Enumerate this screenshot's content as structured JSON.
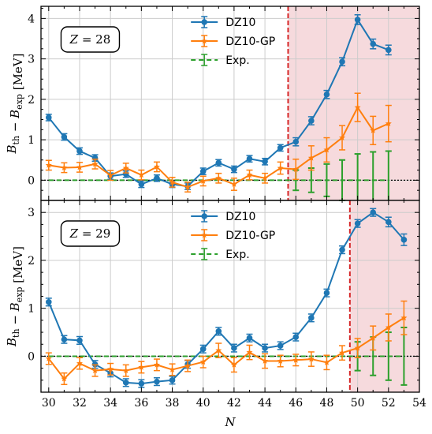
{
  "colors": {
    "dz10": "#1f77b4",
    "dz10gp": "#ff7f0e",
    "exp": "#2ca02c",
    "shade": "#f6dadd",
    "vline": "#d62728",
    "zero": "#000000",
    "grid": "#cccccc"
  },
  "chart_data": [
    {
      "type": "line",
      "panel": "top",
      "annotation": "Z = 28",
      "annotation_symbol": "Z",
      "annotation_value": "= 28",
      "ylabel": "B_th − B_exp [MeV]",
      "xlim": [
        29.5,
        54
      ],
      "ylim": [
        -0.5,
        4.3
      ],
      "yticks": [
        "0",
        "1",
        "2",
        "3",
        "4"
      ],
      "shade_from": 45.5,
      "legend": [
        "DZ10",
        "DZ10-GP",
        "Exp."
      ],
      "series": [
        {
          "name": "DZ10",
          "x": [
            30,
            31,
            32,
            33,
            34,
            35,
            36,
            37,
            38,
            39,
            40,
            41,
            42,
            43,
            44,
            45,
            46,
            47,
            48,
            49,
            50,
            51,
            52
          ],
          "y": [
            1.55,
            1.07,
            0.72,
            0.55,
            0.1,
            0.15,
            -0.1,
            0.05,
            -0.1,
            -0.15,
            0.22,
            0.43,
            0.27,
            0.53,
            0.46,
            0.8,
            0.95,
            1.47,
            2.12,
            2.93,
            3.97,
            3.37,
            3.22
          ],
          "err": [
            0.08,
            0.08,
            0.08,
            0.08,
            0.08,
            0.08,
            0.08,
            0.08,
            0.08,
            0.08,
            0.08,
            0.08,
            0.08,
            0.08,
            0.08,
            0.08,
            0.1,
            0.1,
            0.1,
            0.1,
            0.12,
            0.12,
            0.12
          ]
        },
        {
          "name": "DZ10-GP",
          "x": [
            30,
            31,
            32,
            33,
            34,
            35,
            36,
            37,
            38,
            39,
            40,
            41,
            42,
            43,
            44,
            45,
            46,
            47,
            48,
            49,
            50,
            51,
            52
          ],
          "y": [
            0.37,
            0.31,
            0.32,
            0.4,
            0.12,
            0.3,
            0.13,
            0.33,
            -0.05,
            -0.17,
            -0.02,
            0.05,
            -0.1,
            0.13,
            0.05,
            0.3,
            0.27,
            0.55,
            0.75,
            1.05,
            1.8,
            1.23,
            1.4
          ],
          "err": [
            0.12,
            0.12,
            0.12,
            0.12,
            0.12,
            0.12,
            0.12,
            0.12,
            0.12,
            0.12,
            0.12,
            0.12,
            0.15,
            0.12,
            0.12,
            0.15,
            0.25,
            0.3,
            0.3,
            0.3,
            0.35,
            0.35,
            0.45
          ]
        },
        {
          "name": "Exp.",
          "x": [
            30,
            31,
            32,
            33,
            34,
            35,
            36,
            37,
            38,
            39,
            40,
            41,
            42,
            43,
            44,
            45,
            46,
            47,
            48,
            49,
            50,
            51,
            52
          ],
          "y": [
            0,
            0,
            0,
            0,
            0,
            0,
            0,
            0,
            0,
            0,
            0,
            0,
            0,
            0,
            0,
            0,
            0,
            0,
            0,
            0,
            0,
            0,
            0
          ],
          "err": [
            0,
            0,
            0,
            0,
            0,
            0,
            0,
            0,
            0,
            0,
            0,
            0,
            0,
            0,
            0,
            0,
            0.25,
            0.3,
            0.4,
            0.5,
            0.65,
            0.7,
            0.72
          ]
        }
      ]
    },
    {
      "type": "line",
      "panel": "bottom",
      "annotation": "Z = 29",
      "annotation_symbol": "Z",
      "annotation_value": "= 29",
      "ylabel": "B_th − B_exp [MeV]",
      "xlabel": "N",
      "xlim": [
        29.5,
        54
      ],
      "ylim": [
        -0.75,
        3.25
      ],
      "xticks": [
        "30",
        "32",
        "34",
        "36",
        "38",
        "40",
        "42",
        "44",
        "46",
        "48",
        "50",
        "52",
        "54"
      ],
      "yticks": [
        "0",
        "1",
        "2",
        "3"
      ],
      "shade_from": 49.5,
      "legend": [
        "DZ10",
        "DZ10-GP",
        "Exp."
      ],
      "series": [
        {
          "name": "DZ10",
          "x": [
            30,
            31,
            32,
            33,
            34,
            35,
            36,
            37,
            38,
            39,
            40,
            41,
            42,
            43,
            44,
            45,
            46,
            47,
            48,
            49,
            50,
            51,
            52,
            53
          ],
          "y": [
            1.13,
            0.35,
            0.33,
            -0.17,
            -0.35,
            -0.55,
            -0.57,
            -0.53,
            -0.5,
            -0.17,
            0.15,
            0.52,
            0.17,
            0.38,
            0.17,
            0.22,
            0.4,
            0.8,
            1.32,
            2.22,
            2.77,
            3.0,
            2.8,
            2.43
          ],
          "err": [
            0.08,
            0.08,
            0.08,
            0.08,
            0.08,
            0.08,
            0.08,
            0.08,
            0.08,
            0.08,
            0.08,
            0.08,
            0.08,
            0.08,
            0.08,
            0.08,
            0.08,
            0.08,
            0.08,
            0.08,
            0.08,
            0.08,
            0.1,
            0.12
          ]
        },
        {
          "name": "DZ10-GP",
          "x": [
            30,
            31,
            32,
            33,
            34,
            35,
            36,
            37,
            38,
            39,
            40,
            41,
            42,
            43,
            44,
            45,
            46,
            47,
            48,
            49,
            50,
            51,
            52,
            53
          ],
          "y": [
            -0.05,
            -0.47,
            -0.15,
            -0.3,
            -0.27,
            -0.3,
            -0.23,
            -0.18,
            -0.28,
            -0.2,
            -0.12,
            0.12,
            -0.18,
            0.08,
            -0.1,
            -0.1,
            -0.08,
            -0.06,
            -0.13,
            0.07,
            0.17,
            0.38,
            0.6,
            0.8
          ],
          "err": [
            0.12,
            0.12,
            0.12,
            0.12,
            0.12,
            0.12,
            0.12,
            0.12,
            0.12,
            0.12,
            0.12,
            0.15,
            0.15,
            0.15,
            0.15,
            0.12,
            0.12,
            0.15,
            0.15,
            0.15,
            0.2,
            0.25,
            0.28,
            0.35
          ]
        },
        {
          "name": "Exp.",
          "x": [
            30,
            31,
            32,
            33,
            34,
            35,
            36,
            37,
            38,
            39,
            40,
            41,
            42,
            43,
            44,
            45,
            46,
            47,
            48,
            49,
            50,
            51,
            52,
            53
          ],
          "y": [
            0,
            0,
            0,
            0,
            0,
            0,
            0,
            0,
            0,
            0,
            0,
            0,
            0,
            0,
            0,
            0,
            0,
            0,
            0,
            0,
            0,
            0,
            0,
            0
          ],
          "err": [
            0,
            0,
            0,
            0,
            0,
            0,
            0,
            0,
            0,
            0,
            0,
            0,
            0,
            0,
            0,
            0,
            0,
            0,
            0,
            0,
            0.3,
            0.4,
            0.5,
            0.6
          ]
        }
      ]
    }
  ]
}
